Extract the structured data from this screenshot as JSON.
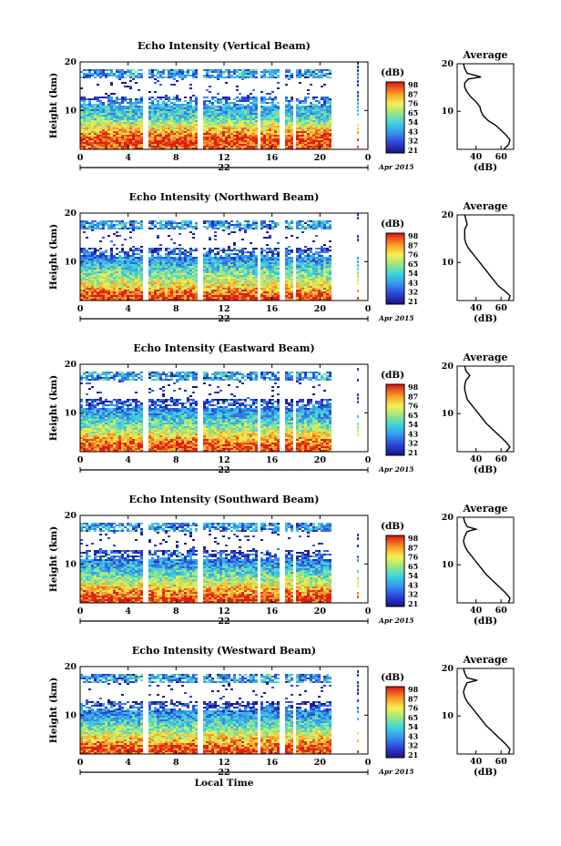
{
  "chart_data": [
    {
      "type": "heatmap",
      "title": "Echo Intensity (Vertical Beam)",
      "ylabel": "Height (km)",
      "x_ticks": [
        "0",
        "4",
        "8",
        "12",
        "16",
        "20",
        "0"
      ],
      "y_ticks": [
        "20",
        "10"
      ],
      "date_label": "22",
      "date_suffix": "Apr 2015",
      "colorbar": {
        "label": "(dB)",
        "ticks": [
          "98",
          "87",
          "76",
          "65",
          "54",
          "43",
          "32",
          "21"
        ]
      },
      "profile": {
        "title": "Average",
        "xlabel": "(dB)",
        "x_ticks": [
          "40",
          "60"
        ],
        "y_ticks": [
          "20",
          "10"
        ],
        "xlim": [
          25,
          70
        ],
        "ylim": [
          2,
          20
        ],
        "heights": [
          2,
          3,
          4,
          5,
          6,
          7,
          8,
          9,
          10,
          11,
          12,
          13,
          14,
          15,
          16,
          16.8,
          17.2,
          18,
          19,
          20
        ],
        "values": [
          62,
          66,
          67,
          64,
          60,
          56,
          50,
          46,
          44,
          43,
          40,
          36,
          33,
          31,
          31,
          34,
          44,
          33,
          31,
          30
        ]
      }
    },
    {
      "type": "heatmap",
      "title": "Echo Intensity (Northward Beam)",
      "ylabel": "Height (km)",
      "x_ticks": [
        "0",
        "4",
        "8",
        "12",
        "16",
        "20",
        "0"
      ],
      "y_ticks": [
        "20",
        "10"
      ],
      "date_label": "22",
      "date_suffix": "Apr 2015",
      "colorbar": {
        "label": "(dB)",
        "ticks": [
          "98",
          "87",
          "76",
          "65",
          "54",
          "43",
          "32",
          "21"
        ]
      },
      "profile": {
        "title": "Average",
        "xlabel": "(dB)",
        "x_ticks": [
          "40",
          "60"
        ],
        "y_ticks": [
          "20",
          "10"
        ],
        "xlim": [
          25,
          70
        ],
        "ylim": [
          2,
          20
        ],
        "heights": [
          2,
          3,
          4,
          5,
          6,
          7,
          8,
          9,
          10,
          11,
          12,
          13,
          14,
          15,
          16,
          17,
          18,
          19,
          20
        ],
        "values": [
          66,
          67,
          63,
          58,
          55,
          52,
          49,
          46,
          43,
          40,
          37,
          34,
          32,
          31,
          31,
          31,
          33,
          32,
          31
        ]
      }
    },
    {
      "type": "heatmap",
      "title": "Echo Intensity (Eastward Beam)",
      "ylabel": "Height (km)",
      "x_ticks": [
        "0",
        "4",
        "8",
        "12",
        "16",
        "20",
        "0"
      ],
      "y_ticks": [
        "20",
        "10"
      ],
      "date_label": "22",
      "date_suffix": "Apr 2015",
      "colorbar": {
        "label": "(dB)",
        "ticks": [
          "98",
          "87",
          "76",
          "65",
          "54",
          "43",
          "32",
          "21"
        ]
      },
      "profile": {
        "title": "Average",
        "xlabel": "(dB)",
        "x_ticks": [
          "40",
          "60"
        ],
        "y_ticks": [
          "20",
          "10"
        ],
        "xlim": [
          25,
          70
        ],
        "ylim": [
          2,
          20
        ],
        "heights": [
          2,
          3,
          4,
          5,
          6,
          7,
          8,
          9,
          10,
          11,
          12,
          13,
          14,
          15,
          16,
          17,
          18,
          19,
          20
        ],
        "values": [
          64,
          67,
          64,
          60,
          56,
          52,
          48,
          45,
          42,
          39,
          36,
          33,
          32,
          31,
          31,
          32,
          35,
          32,
          31
        ]
      }
    },
    {
      "type": "heatmap",
      "title": "Echo Intensity (Southward Beam)",
      "ylabel": "Height (km)",
      "x_ticks": [
        "0",
        "4",
        "8",
        "12",
        "16",
        "20",
        "0"
      ],
      "y_ticks": [
        "20",
        "10"
      ],
      "date_label": "22",
      "date_suffix": "Apr 2015",
      "colorbar": {
        "label": "(dB)",
        "ticks": [
          "98",
          "87",
          "76",
          "65",
          "54",
          "43",
          "32",
          "21"
        ]
      },
      "profile": {
        "title": "Average",
        "xlabel": "(dB)",
        "x_ticks": [
          "40",
          "60"
        ],
        "y_ticks": [
          "20",
          "10"
        ],
        "xlim": [
          25,
          70
        ],
        "ylim": [
          2,
          20
        ],
        "heights": [
          2,
          3,
          4,
          5,
          6,
          7,
          8,
          9,
          10,
          11,
          12,
          13,
          14,
          15,
          16,
          17,
          17.5,
          18,
          19,
          20
        ],
        "values": [
          66,
          67,
          64,
          60,
          56,
          52,
          48,
          45,
          42,
          39,
          36,
          33,
          31,
          30,
          31,
          33,
          40,
          33,
          31,
          30
        ]
      }
    },
    {
      "type": "heatmap",
      "title": "Echo Intensity (Westward Beam)",
      "ylabel": "Height (km)",
      "xlabel": "Local Time",
      "x_ticks": [
        "0",
        "4",
        "8",
        "12",
        "16",
        "20",
        "0"
      ],
      "y_ticks": [
        "20",
        "10"
      ],
      "date_label": "22",
      "date_suffix": "Apr 2015",
      "colorbar": {
        "label": "(dB)",
        "ticks": [
          "98",
          "87",
          "76",
          "65",
          "54",
          "43",
          "32",
          "21"
        ]
      },
      "profile": {
        "title": "Average",
        "xlabel": "(dB)",
        "x_ticks": [
          "40",
          "60"
        ],
        "y_ticks": [
          "20",
          "10"
        ],
        "xlim": [
          25,
          70
        ],
        "ylim": [
          2,
          20
        ],
        "heights": [
          2,
          3,
          4,
          5,
          6,
          7,
          8,
          9,
          10,
          11,
          12,
          13,
          14,
          15,
          16,
          17,
          17.5,
          18,
          19,
          20
        ],
        "values": [
          66,
          67,
          64,
          60,
          56,
          52,
          48,
          45,
          42,
          39,
          36,
          33,
          31,
          30,
          31,
          33,
          41,
          33,
          31,
          30
        ]
      }
    }
  ]
}
